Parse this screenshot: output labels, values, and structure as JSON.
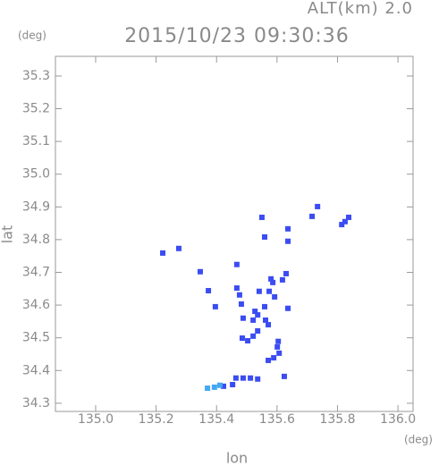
{
  "chart_data": {
    "type": "scatter",
    "title": "2015/10/23 09:30:36",
    "subtitle": "ALT(km) 2.0",
    "y_unit": "(deg)",
    "x_unit": "(deg)",
    "xlabel": "lon",
    "ylabel": "lat",
    "xlim": [
      134.867,
      136.05
    ],
    "ylim": [
      34.275,
      35.36
    ],
    "xticks": [
      {
        "value": 135,
        "label": "135.0"
      },
      135.2,
      135.4,
      135.6,
      135.8,
      {
        "value": 136,
        "label": "136.0"
      }
    ],
    "yticks": [
      34.3,
      34.4,
      34.5,
      34.6,
      34.7,
      34.8,
      34.9,
      {
        "value": 35,
        "label": "35.0"
      },
      35.1,
      35.2,
      35.3
    ],
    "x": [
      135.222,
      135.275,
      135.346,
      135.373,
      135.396,
      135.467,
      135.467,
      135.476,
      135.482,
      135.488,
      135.521,
      135.536,
      135.527,
      135.485,
      135.503,
      135.521,
      135.536,
      135.559,
      135.574,
      135.541,
      135.58,
      135.586,
      135.592,
      135.562,
      135.571,
      135.601,
      135.604,
      135.589,
      135.571,
      135.607,
      135.618,
      135.63,
      135.636,
      135.624,
      135.55,
      135.559,
      135.636,
      135.636,
      135.716,
      135.734,
      135.814,
      135.825,
      135.837,
      135.464,
      135.488,
      135.512,
      135.536,
      135.453,
      135.423,
      135.37,
      135.393,
      135.411
    ],
    "y": [
      34.759,
      34.773,
      34.702,
      34.644,
      34.595,
      34.724,
      34.652,
      34.631,
      34.603,
      34.56,
      34.554,
      34.57,
      34.581,
      34.499,
      34.491,
      34.505,
      34.521,
      34.595,
      34.642,
      34.642,
      34.68,
      34.669,
      34.625,
      34.554,
      34.54,
      34.472,
      34.489,
      34.439,
      34.431,
      34.453,
      34.677,
      34.696,
      34.59,
      34.382,
      34.868,
      34.808,
      34.833,
      34.795,
      34.871,
      34.901,
      34.846,
      34.855,
      34.868,
      34.377,
      34.377,
      34.377,
      34.374,
      34.357,
      34.352,
      34.346,
      34.349,
      34.355
    ],
    "color": "#3b4cf2",
    "light_color": "#45a8f0",
    "light_points": [
      49,
      50,
      51
    ]
  }
}
